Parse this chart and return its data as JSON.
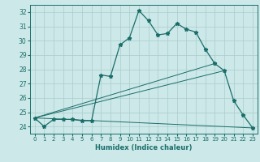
{
  "xlabel": "Humidex (Indice chaleur)",
  "bg_color": "#cce8e8",
  "grid_color": "#aacccc",
  "line_color": "#1a6e6a",
  "xlim": [
    -0.5,
    23.5
  ],
  "ylim": [
    23.5,
    32.5
  ],
  "xticks": [
    0,
    1,
    2,
    3,
    4,
    5,
    6,
    7,
    8,
    9,
    10,
    11,
    12,
    13,
    14,
    15,
    16,
    17,
    18,
    19,
    20,
    21,
    22,
    23
  ],
  "yticks": [
    24,
    25,
    26,
    27,
    28,
    29,
    30,
    31,
    32
  ],
  "series_main": {
    "x": [
      0,
      1,
      2,
      3,
      4,
      5,
      6,
      7,
      8,
      9,
      10,
      11,
      12,
      13,
      14,
      15,
      16,
      17,
      18,
      19,
      20,
      21,
      22,
      23
    ],
    "y": [
      24.6,
      24.0,
      24.5,
      24.5,
      24.5,
      24.4,
      24.4,
      27.6,
      27.5,
      29.7,
      30.2,
      32.1,
      31.4,
      30.4,
      30.5,
      31.2,
      30.8,
      30.6,
      29.4,
      28.4,
      27.9,
      25.8,
      24.8,
      23.9
    ]
  },
  "series_lines": [
    {
      "x": [
        0,
        23
      ],
      "y": [
        24.6,
        23.9
      ]
    },
    {
      "x": [
        0,
        20
      ],
      "y": [
        24.6,
        27.9
      ]
    },
    {
      "x": [
        0,
        19
      ],
      "y": [
        24.6,
        28.4
      ]
    }
  ]
}
